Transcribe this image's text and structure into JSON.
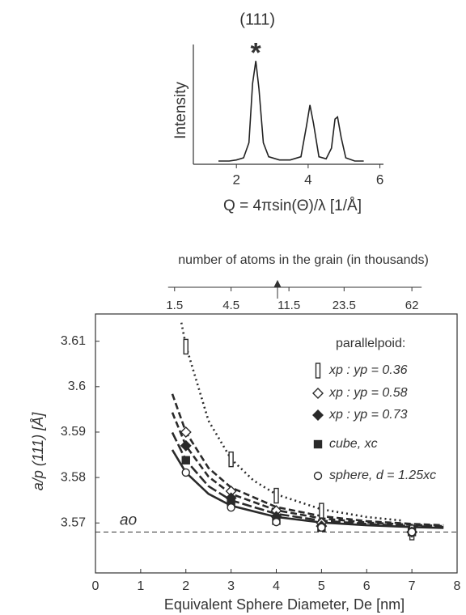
{
  "chart_data": [
    {
      "type": "line",
      "title": "(111)",
      "peak_marker": "*",
      "xlabel": "Q = 4πsin(Θ)/λ   [1/Å]",
      "ylabel": "Intensity",
      "xlim": [
        0.8,
        6.1
      ],
      "xticks": [
        2,
        4,
        6
      ],
      "ylim": [
        0,
        1
      ],
      "color": "#222222",
      "x": [
        1.5,
        1.8,
        2.0,
        2.2,
        2.35,
        2.45,
        2.54,
        2.63,
        2.75,
        2.9,
        3.2,
        3.5,
        3.8,
        3.95,
        4.05,
        4.15,
        4.3,
        4.5,
        4.65,
        4.75,
        4.82,
        4.92,
        5.05,
        5.3,
        5.55
      ],
      "values": [
        0.03,
        0.03,
        0.04,
        0.06,
        0.2,
        0.75,
        0.96,
        0.7,
        0.2,
        0.07,
        0.04,
        0.04,
        0.07,
        0.35,
        0.55,
        0.38,
        0.07,
        0.05,
        0.15,
        0.42,
        0.44,
        0.25,
        0.06,
        0.03,
        0.03
      ]
    },
    {
      "type": "scatter",
      "xlabel": "Equivalent Sphere Diameter, De   [nm]",
      "ylabel": "a/p (111)   [Å]",
      "x2label": "number of atoms in the grain (in thousands)",
      "x2ticks": [
        {
          "value": 1.75,
          "label": "1.5"
        },
        {
          "value": 3.0,
          "label": "4.5"
        },
        {
          "value": 4.28,
          "label": "11.5"
        },
        {
          "value": 5.5,
          "label": "23.5"
        },
        {
          "value": 7.0,
          "label": "62"
        }
      ],
      "xlim": [
        0,
        8
      ],
      "xticks": [
        0,
        1,
        2,
        3,
        4,
        5,
        6,
        7,
        8
      ],
      "ylim": [
        3.559,
        3.616
      ],
      "yticks": [
        3.57,
        3.58,
        3.59,
        3.6,
        3.61
      ],
      "hline": {
        "value": 3.568,
        "label": "ao"
      },
      "legend_title": "parallelpoid:",
      "legend": "upper right",
      "color": "#2a2a2a",
      "series": [
        {
          "name": "xp : yp = 0.36",
          "marker": "bar",
          "filled": false,
          "x": [
            2,
            3,
            4,
            5,
            7
          ],
          "values": [
            3.6088,
            3.584,
            3.576,
            3.5727,
            3.5679
          ],
          "fit": {
            "dash": "dotted",
            "x": [
              1.9,
              2,
              2.5,
              3,
              3.5,
              4,
              5,
              6,
              6.8
            ],
            "values": [
              3.6141,
              3.609,
              3.5925,
              3.5841,
              3.5793,
              3.5763,
              3.573,
              3.5713,
              3.5705
            ]
          }
        },
        {
          "name": "xp : yp = 0.58",
          "marker": "diamond",
          "filled": false,
          "x": [
            2,
            3,
            4,
            5,
            7
          ],
          "values": [
            3.59,
            3.577,
            3.5727,
            3.57,
            3.568
          ],
          "fit": {
            "dash": "dashed",
            "x": [
              1.7,
              2,
              2.5,
              3,
              4,
              5,
              6,
              7,
              7.7
            ],
            "values": [
              3.5984,
              3.59,
              3.5821,
              3.5778,
              3.5735,
              3.5715,
              3.5704,
              3.5698,
              3.5695
            ]
          }
        },
        {
          "name": "xp : yp = 0.73",
          "marker": "diamond",
          "filled": true,
          "x": [
            2,
            3,
            4,
            5,
            7
          ],
          "values": [
            3.587,
            3.5755,
            3.5714,
            3.5693,
            3.568
          ],
          "fit": {
            "dash": "dashed",
            "x": [
              1.7,
              2,
              2.5,
              3,
              4,
              5,
              6,
              7,
              7.7
            ],
            "values": [
              3.5943,
              3.587,
              3.5802,
              3.5764,
              3.5728,
              3.571,
              3.5701,
              3.5696,
              3.5693
            ]
          }
        },
        {
          "name": "cube, xc",
          "marker": "square",
          "filled": true,
          "x": [
            2,
            3,
            4,
            5,
            7
          ],
          "values": [
            3.5838,
            3.5746,
            3.5705,
            3.569,
            3.568
          ],
          "fit": {
            "dash": "longdash",
            "x": [
              1.7,
              2,
              2.5,
              3,
              4,
              5,
              6,
              7,
              7.7
            ],
            "values": [
              3.5899,
              3.5838,
              3.5781,
              3.575,
              3.572,
              3.5705,
              3.5698,
              3.5693,
              3.5691
            ]
          }
        },
        {
          "name": "sphere, d = 1.25xc",
          "marker": "circle",
          "filled": false,
          "x": [
            2,
            3,
            4,
            5,
            7
          ],
          "values": [
            3.5811,
            3.5734,
            3.5702,
            3.569,
            3.568
          ],
          "fit": {
            "dash": "solid",
            "x": [
              1.7,
              2,
              2.5,
              3,
              4,
              5,
              6,
              7,
              7.7
            ],
            "values": [
              3.5861,
              3.5811,
              3.5764,
              3.5738,
              3.5713,
              3.5701,
              3.5695,
              3.5691,
              3.5689
            ]
          }
        }
      ]
    }
  ]
}
